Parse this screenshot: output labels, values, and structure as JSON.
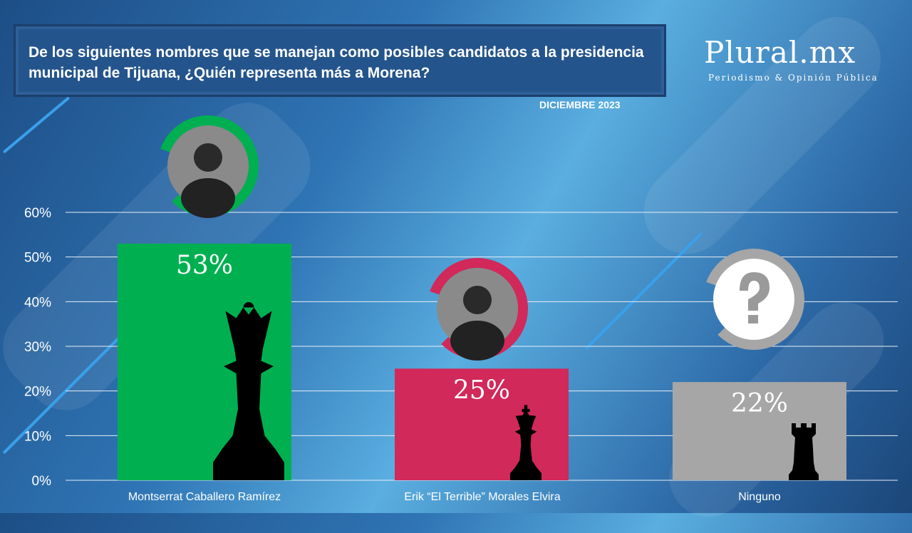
{
  "header": {
    "title": "De los siguientes nombres que se manejan como posibles candidatos a la presidencia municipal de Tijuana, ¿Quién representa más a Morena?",
    "date": "DICIEMBRE 2023"
  },
  "logo": {
    "name": "Plural.mx",
    "tagline": "Periodismo & Opinión Pública"
  },
  "chart_data": {
    "type": "bar",
    "title": "",
    "xlabel": "",
    "ylabel": "",
    "categories": [
      "Montserrat Caballero Ramírez",
      "Erik “El Terrible” Morales Elvira",
      "Ninguno"
    ],
    "values": [
      53,
      25,
      22
    ],
    "data_labels": [
      "53%",
      "25%",
      "22%"
    ],
    "colors": [
      "#00b050",
      "#d0295a",
      "#a6a6a6"
    ],
    "icons": [
      "chess-queen-icon",
      "chess-king-icon",
      "chess-rook-icon"
    ],
    "ylim": [
      0,
      60
    ],
    "yticks": [
      "0%",
      "10%",
      "20%",
      "30%",
      "40%",
      "50%",
      "60%"
    ],
    "grid": true
  }
}
